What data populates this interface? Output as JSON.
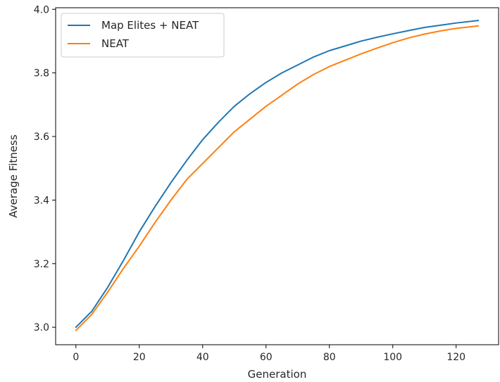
{
  "chart_data": {
    "type": "line",
    "title": "",
    "xlabel": "Generation",
    "ylabel": "Average Fitness",
    "xlim": [
      -6.4,
      133.4
    ],
    "ylim": [
      2.945,
      4.005
    ],
    "x_ticks": [
      0,
      20,
      40,
      60,
      80,
      100,
      120
    ],
    "x_tick_labels": [
      "0",
      "20",
      "40",
      "60",
      "80",
      "100",
      "120"
    ],
    "y_ticks": [
      3.0,
      3.2,
      3.4,
      3.6,
      3.8,
      4.0
    ],
    "y_tick_labels": [
      "3.0",
      "3.2",
      "3.4",
      "3.6",
      "3.8",
      "4.0"
    ],
    "grid": false,
    "legend_position": "top-left",
    "x": [
      0,
      5,
      10,
      15,
      20,
      25,
      30,
      35,
      40,
      45,
      50,
      55,
      60,
      65,
      70,
      75,
      80,
      85,
      90,
      95,
      100,
      105,
      110,
      115,
      120,
      127
    ],
    "series": [
      {
        "name": "Map Elites + NEAT",
        "color": "#1f77b4",
        "values": [
          3.0,
          3.05,
          3.125,
          3.21,
          3.3,
          3.38,
          3.455,
          3.525,
          3.59,
          3.645,
          3.695,
          3.735,
          3.77,
          3.8,
          3.825,
          3.85,
          3.87,
          3.885,
          3.9,
          3.912,
          3.923,
          3.933,
          3.943,
          3.95,
          3.957,
          3.965
        ]
      },
      {
        "name": "NEAT",
        "color": "#ff7f0e",
        "values": [
          2.99,
          3.04,
          3.11,
          3.185,
          3.255,
          3.33,
          3.4,
          3.465,
          3.515,
          3.565,
          3.615,
          3.655,
          3.695,
          3.73,
          3.765,
          3.795,
          3.82,
          3.84,
          3.86,
          3.878,
          3.895,
          3.91,
          3.922,
          3.932,
          3.94,
          3.948
        ]
      }
    ]
  }
}
